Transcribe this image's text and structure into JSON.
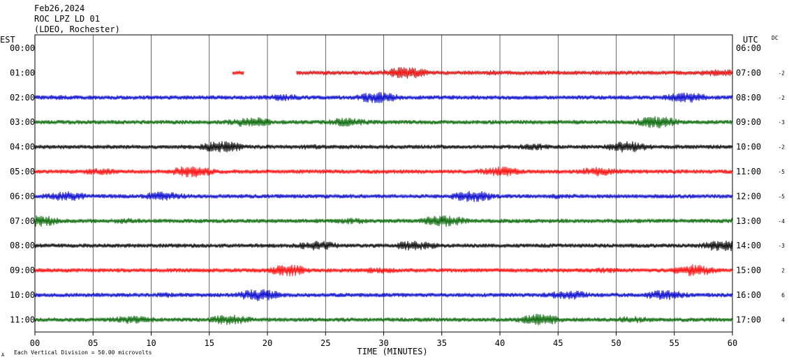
{
  "header": {
    "date": "Feb26,2024",
    "station": "ROC LPZ LD 01",
    "network": "(LDEO, Rochester)"
  },
  "left_zone_label": "EST",
  "right_zone_label": "UTC",
  "dc_label": "DC",
  "footer": {
    "scale_note": "Each Vertical Division =   50.00 microvolts",
    "corner_mark": "A"
  },
  "colors": {
    "red": "#ff0000",
    "blue": "#0000cc",
    "green": "#006400",
    "black": "#000000"
  },
  "chart_data": {
    "type": "line",
    "xlabel": "TIME (MINUTES)",
    "xlim": [
      0,
      60
    ],
    "x_ticks": [
      "00",
      "05",
      "10",
      "15",
      "20",
      "25",
      "30",
      "35",
      "40",
      "45",
      "50",
      "55",
      "60"
    ],
    "rows": [
      {
        "est": "00:00",
        "utc": "06:00",
        "dc": "",
        "color": "",
        "segments": []
      },
      {
        "est": "01:00",
        "utc": "07:00",
        "dc": "-2",
        "color": "#ff0000",
        "segments": [
          [
            17.0,
            18.0
          ],
          [
            22.5,
            60
          ]
        ]
      },
      {
        "est": "02:00",
        "utc": "08:00",
        "dc": "-2",
        "color": "#0000cc",
        "segments": [
          [
            0,
            60
          ]
        ]
      },
      {
        "est": "03:00",
        "utc": "09:00",
        "dc": "-3",
        "color": "#006400",
        "segments": [
          [
            0,
            60
          ]
        ]
      },
      {
        "est": "04:00",
        "utc": "10:00",
        "dc": "-2",
        "color": "#000000",
        "segments": [
          [
            0,
            60
          ]
        ]
      },
      {
        "est": "05:00",
        "utc": "11:00",
        "dc": "-5",
        "color": "#ff0000",
        "segments": [
          [
            0,
            60
          ]
        ]
      },
      {
        "est": "06:00",
        "utc": "12:00",
        "dc": "-5",
        "color": "#0000cc",
        "segments": [
          [
            0,
            60
          ]
        ]
      },
      {
        "est": "07:00",
        "utc": "13:00",
        "dc": "-4",
        "color": "#006400",
        "segments": [
          [
            0,
            60
          ]
        ]
      },
      {
        "est": "08:00",
        "utc": "14:00",
        "dc": "-3",
        "color": "#000000",
        "segments": [
          [
            0,
            60
          ]
        ]
      },
      {
        "est": "09:00",
        "utc": "15:00",
        "dc": "2",
        "color": "#ff0000",
        "segments": [
          [
            0,
            60
          ]
        ]
      },
      {
        "est": "10:00",
        "utc": "16:00",
        "dc": "6",
        "color": "#0000cc",
        "segments": [
          [
            0,
            60
          ]
        ]
      },
      {
        "est": "11:00",
        "utc": "17:00",
        "dc": "4",
        "color": "#006400",
        "segments": [
          [
            0,
            60
          ]
        ]
      }
    ]
  }
}
